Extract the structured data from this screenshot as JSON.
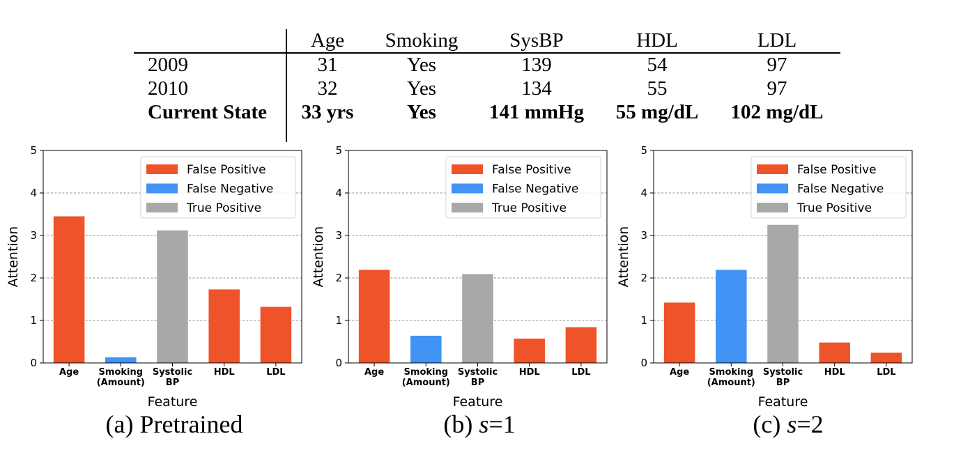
{
  "table": {
    "columns": [
      "Age",
      "Smoking",
      "SysBP",
      "HDL",
      "LDL"
    ],
    "rows": [
      {
        "label": "2009",
        "values": [
          "31",
          "Yes",
          "139",
          "54",
          "97"
        ],
        "bold": false
      },
      {
        "label": "2010",
        "values": [
          "32",
          "Yes",
          "134",
          "55",
          "97"
        ],
        "bold": false
      },
      {
        "label": "Current State",
        "values": [
          "33 yrs",
          "Yes",
          "141 mmHg",
          "55 mg/dL",
          "102 mg/dL"
        ],
        "bold": true
      }
    ]
  },
  "colors": {
    "false_positive": "#ee5329",
    "false_negative": "#4193f4",
    "true_positive": "#a8a8a8"
  },
  "chart_data": [
    {
      "type": "bar",
      "categories": [
        "Age",
        "Smoking\n(Amount)",
        "Systolic\nBP",
        "HDL",
        "LDL"
      ],
      "values": [
        3.45,
        0.13,
        3.12,
        1.73,
        1.32
      ],
      "bar_classes": [
        "False Positive",
        "False Negative",
        "True Positive",
        "False Positive",
        "False Positive"
      ],
      "legend": [
        "False Positive",
        "False Negative",
        "True Positive"
      ],
      "legend_position": "top-right",
      "xlabel": "Feature",
      "ylabel": "Attention",
      "ylim": [
        0,
        5
      ],
      "yticks": [
        0,
        1,
        2,
        3,
        4,
        5
      ],
      "grid": "horizontal dashed",
      "caption": {
        "prefix": "(a) Pretrained",
        "var": "",
        "suffix": ""
      }
    },
    {
      "type": "bar",
      "categories": [
        "Age",
        "Smoking\n(Amount)",
        "Systolic\nBP",
        "HDL",
        "LDL"
      ],
      "values": [
        2.19,
        0.64,
        2.09,
        0.57,
        0.84
      ],
      "bar_classes": [
        "False Positive",
        "False Negative",
        "True Positive",
        "False Positive",
        "False Positive"
      ],
      "legend": [
        "False Positive",
        "False Negative",
        "True Positive"
      ],
      "legend_position": "top-right",
      "xlabel": "Feature",
      "ylabel": "Attention",
      "ylim": [
        0,
        5
      ],
      "yticks": [
        0,
        1,
        2,
        3,
        4,
        5
      ],
      "grid": "horizontal dashed",
      "caption": {
        "prefix": "(b) ",
        "var": "s",
        "suffix": "=1"
      }
    },
    {
      "type": "bar",
      "categories": [
        "Age",
        "Smoking\n(Amount)",
        "Systolic\nBP",
        "HDL",
        "LDL"
      ],
      "values": [
        1.42,
        2.19,
        3.25,
        0.48,
        0.24
      ],
      "bar_classes": [
        "False Positive",
        "False Negative",
        "True Positive",
        "False Positive",
        "False Positive"
      ],
      "legend": [
        "False Positive",
        "False Negative",
        "True Positive"
      ],
      "legend_position": "top-right",
      "xlabel": "Feature",
      "ylabel": "Attention",
      "ylim": [
        0,
        5
      ],
      "yticks": [
        0,
        1,
        2,
        3,
        4,
        5
      ],
      "grid": "horizontal dashed",
      "caption": {
        "prefix": "(c) ",
        "var": "s",
        "suffix": "=2"
      }
    }
  ]
}
